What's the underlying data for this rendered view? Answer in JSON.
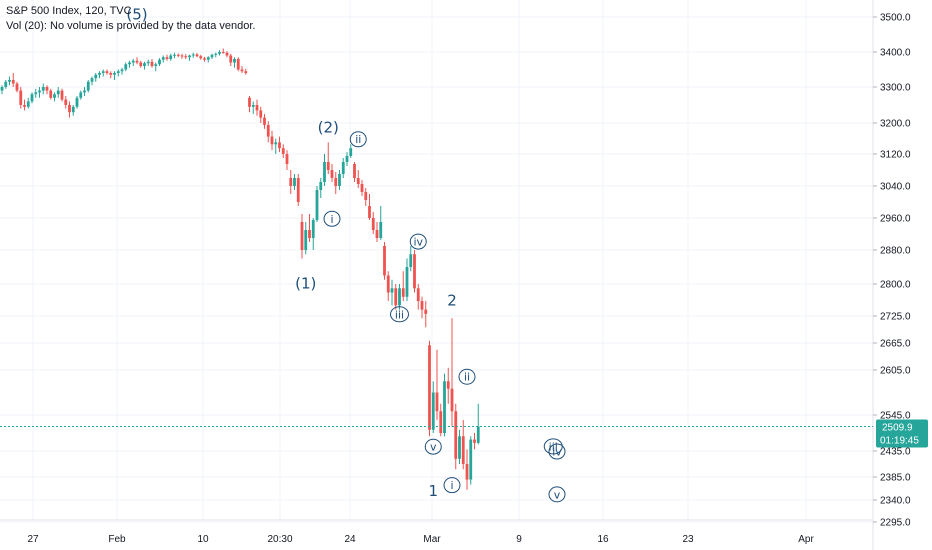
{
  "legend": {
    "symbol_line": "S&P 500 Index, 120, TVC",
    "volume_line": "Vol (20): No volume is provided by the data vendor."
  },
  "price_badge": {
    "price": "2509.9",
    "countdown": "01:19:45",
    "color": "#26a69a"
  },
  "chart_data": {
    "type": "candlestick",
    "title": "S&P 500 Index, 120, TVC",
    "y_ticks": [
      "3500.0",
      "3400.0",
      "3300.0",
      "3200.0",
      "3120.0",
      "3040.0",
      "2960.0",
      "2880.0",
      "2800.0",
      "2725.0",
      "2665.0",
      "2605.0",
      "2545.0",
      "2435.0",
      "2385.0",
      "2340.0",
      "2295.0"
    ],
    "x_ticks": [
      "27",
      "Feb",
      "10",
      "20:30",
      "24",
      "Mar",
      "9",
      "16",
      "23",
      "Apr"
    ],
    "ylim": [
      2295,
      3530
    ],
    "last_price": 2509.9,
    "colors": {
      "up": "#26a69a",
      "down": "#ef5350",
      "wave_label": "#1f4e79",
      "grid": "#f0f3fa"
    },
    "candles": [
      [
        3290,
        3305,
        3280,
        3300
      ],
      [
        3300,
        3320,
        3295,
        3315
      ],
      [
        3315,
        3330,
        3305,
        3320
      ],
      [
        3320,
        3340,
        3300,
        3310
      ],
      [
        3310,
        3315,
        3285,
        3290
      ],
      [
        3290,
        3300,
        3240,
        3250
      ],
      [
        3250,
        3265,
        3235,
        3245
      ],
      [
        3245,
        3270,
        3240,
        3260
      ],
      [
        3260,
        3285,
        3255,
        3280
      ],
      [
        3280,
        3295,
        3270,
        3285
      ],
      [
        3285,
        3300,
        3270,
        3290
      ],
      [
        3290,
        3310,
        3280,
        3300
      ],
      [
        3300,
        3305,
        3280,
        3290
      ],
      [
        3290,
        3295,
        3265,
        3270
      ],
      [
        3270,
        3285,
        3260,
        3280
      ],
      [
        3280,
        3300,
        3270,
        3290
      ],
      [
        3290,
        3295,
        3260,
        3265
      ],
      [
        3265,
        3275,
        3240,
        3250
      ],
      [
        3250,
        3260,
        3215,
        3230
      ],
      [
        3230,
        3250,
        3220,
        3245
      ],
      [
        3245,
        3275,
        3240,
        3270
      ],
      [
        3270,
        3290,
        3265,
        3285
      ],
      [
        3285,
        3300,
        3275,
        3290
      ],
      [
        3290,
        3320,
        3285,
        3315
      ],
      [
        3315,
        3330,
        3305,
        3325
      ],
      [
        3325,
        3340,
        3315,
        3335
      ],
      [
        3335,
        3345,
        3325,
        3340
      ],
      [
        3340,
        3350,
        3330,
        3345
      ],
      [
        3345,
        3350,
        3335,
        3340
      ],
      [
        3340,
        3345,
        3325,
        3335
      ],
      [
        3335,
        3345,
        3320,
        3340
      ],
      [
        3340,
        3350,
        3330,
        3345
      ],
      [
        3345,
        3355,
        3335,
        3350
      ],
      [
        3350,
        3370,
        3345,
        3365
      ],
      [
        3365,
        3375,
        3355,
        3370
      ],
      [
        3370,
        3380,
        3360,
        3375
      ],
      [
        3375,
        3385,
        3365,
        3370
      ],
      [
        3370,
        3375,
        3355,
        3360
      ],
      [
        3360,
        3372,
        3350,
        3368
      ],
      [
        3368,
        3378,
        3360,
        3372
      ],
      [
        3372,
        3380,
        3355,
        3360
      ],
      [
        3360,
        3370,
        3345,
        3365
      ],
      [
        3365,
        3382,
        3360,
        3378
      ],
      [
        3378,
        3390,
        3370,
        3385
      ],
      [
        3385,
        3392,
        3375,
        3380
      ],
      [
        3380,
        3395,
        3375,
        3390
      ],
      [
        3390,
        3398,
        3382,
        3392
      ],
      [
        3392,
        3396,
        3385,
        3390
      ],
      [
        3390,
        3395,
        3380,
        3388
      ],
      [
        3388,
        3394,
        3380,
        3385
      ],
      [
        3385,
        3392,
        3375,
        3390
      ],
      [
        3390,
        3398,
        3383,
        3393
      ],
      [
        3393,
        3397,
        3385,
        3388
      ],
      [
        3388,
        3392,
        3378,
        3382
      ],
      [
        3382,
        3386,
        3372,
        3378
      ],
      [
        3378,
        3388,
        3370,
        3385
      ],
      [
        3385,
        3395,
        3380,
        3392
      ],
      [
        3392,
        3398,
        3385,
        3395
      ],
      [
        3395,
        3405,
        3390,
        3400
      ],
      [
        3400,
        3410,
        3395,
        3398
      ],
      [
        3398,
        3402,
        3385,
        3390
      ],
      [
        3390,
        3395,
        3360,
        3370
      ],
      [
        3370,
        3385,
        3355,
        3380
      ],
      [
        3380,
        3385,
        3345,
        3350
      ],
      [
        3350,
        3360,
        3340,
        3345
      ],
      [
        3345,
        3352,
        3335,
        3340
      ],
      [
        3270,
        3275,
        3230,
        3245
      ],
      [
        3245,
        3260,
        3225,
        3250
      ],
      [
        3250,
        3265,
        3220,
        3235
      ],
      [
        3235,
        3245,
        3200,
        3215
      ],
      [
        3215,
        3225,
        3185,
        3195
      ],
      [
        3195,
        3205,
        3150,
        3165
      ],
      [
        3165,
        3180,
        3130,
        3145
      ],
      [
        3145,
        3160,
        3120,
        3150
      ],
      [
        3150,
        3165,
        3125,
        3135
      ],
      [
        3135,
        3145,
        3110,
        3120
      ],
      [
        3120,
        3130,
        3080,
        3095
      ],
      [
        3060,
        3080,
        3020,
        3040
      ],
      [
        3040,
        3070,
        3030,
        3060
      ],
      [
        3060,
        3070,
        2990,
        3000
      ],
      [
        2950,
        2970,
        2860,
        2880
      ],
      [
        2880,
        2950,
        2870,
        2930
      ],
      [
        2930,
        2970,
        2900,
        2910
      ],
      [
        2910,
        2960,
        2880,
        2955
      ],
      [
        2955,
        3040,
        2950,
        3030
      ],
      [
        3030,
        3060,
        3010,
        3050
      ],
      [
        3050,
        3120,
        3040,
        3100
      ],
      [
        3100,
        3150,
        3070,
        3080
      ],
      [
        3080,
        3095,
        3050,
        3060
      ],
      [
        3060,
        3075,
        3020,
        3040
      ],
      [
        3040,
        3080,
        3030,
        3070
      ],
      [
        3070,
        3110,
        3060,
        3100
      ],
      [
        3100,
        3125,
        3090,
        3115
      ],
      [
        3115,
        3145,
        3110,
        3135
      ],
      [
        3095,
        3100,
        3050,
        3060
      ],
      [
        3060,
        3080,
        3035,
        3045
      ],
      [
        3045,
        3055,
        3015,
        3025
      ],
      [
        3025,
        3035,
        2990,
        3005
      ],
      [
        2990,
        3020,
        2955,
        2960
      ],
      [
        2960,
        2975,
        2920,
        2930
      ],
      [
        2930,
        2950,
        2900,
        2910
      ],
      [
        2910,
        2990,
        2905,
        2950
      ],
      [
        2890,
        2900,
        2810,
        2820
      ],
      [
        2820,
        2830,
        2760,
        2780
      ],
      [
        2780,
        2810,
        2750,
        2790
      ],
      [
        2790,
        2800,
        2740,
        2750
      ],
      [
        2750,
        2800,
        2740,
        2790
      ],
      [
        2790,
        2830,
        2760,
        2770
      ],
      [
        2770,
        2860,
        2760,
        2840
      ],
      [
        2840,
        2890,
        2830,
        2870
      ],
      [
        2870,
        2880,
        2780,
        2790
      ],
      [
        2790,
        2800,
        2740,
        2760
      ],
      [
        2760,
        2770,
        2720,
        2740
      ],
      [
        2740,
        2760,
        2700,
        2730
      ],
      [
        2660,
        2670,
        2480,
        2500
      ],
      [
        2500,
        2590,
        2490,
        2575
      ],
      [
        2575,
        2650,
        2530,
        2550
      ],
      [
        2550,
        2560,
        2480,
        2490
      ],
      [
        2490,
        2600,
        2480,
        2590
      ],
      [
        2590,
        2610,
        2560,
        2580
      ],
      [
        2580,
        2720,
        2510,
        2550
      ],
      [
        2550,
        2560,
        2400,
        2420
      ],
      [
        2420,
        2500,
        2410,
        2480
      ],
      [
        2480,
        2530,
        2400,
        2410
      ],
      [
        2410,
        2440,
        2360,
        2380
      ],
      [
        2380,
        2480,
        2370,
        2470
      ],
      [
        2470,
        2490,
        2440,
        2460
      ],
      [
        2460,
        2560,
        2455,
        2510
      ]
    ],
    "wave_labels": [
      {
        "text": "(5)",
        "date_index": 36,
        "price": 3509,
        "circle": false,
        "size": 15
      },
      {
        "text": "(2)",
        "date_index": 87,
        "price": 3189,
        "circle": false,
        "size": 15
      },
      {
        "text": "(1)",
        "date_index": 81,
        "price": 2802,
        "circle": false,
        "size": 15
      },
      {
        "text": "ii",
        "date_index": 95,
        "price": 3158,
        "circle": true,
        "size": 11
      },
      {
        "text": "i",
        "date_index": 88,
        "price": 2958,
        "circle": true,
        "size": 11
      },
      {
        "text": "iv",
        "date_index": 111,
        "price": 2901,
        "circle": true,
        "size": 11
      },
      {
        "text": "iii",
        "date_index": 106,
        "price": 2729,
        "circle": true,
        "size": 11
      },
      {
        "text": "2",
        "date_index": 120,
        "price": 2762,
        "circle": false,
        "size": 15
      },
      {
        "text": "ii",
        "date_index": 124,
        "price": 2596,
        "circle": true,
        "size": 11
      },
      {
        "text": "v",
        "date_index": 115,
        "price": 2448,
        "circle": true,
        "size": 11
      },
      {
        "text": "1",
        "date_index": 115,
        "price": 2358,
        "circle": false,
        "size": 15
      },
      {
        "text": "i",
        "date_index": 120,
        "price": 2369,
        "circle": true,
        "size": 11
      },
      {
        "text": "iii",
        "date_index": 147,
        "price": 2449,
        "circle": true,
        "size": 11
      },
      {
        "text": "iv",
        "date_index": 148,
        "price": 2434,
        "circle": true,
        "size": 11
      },
      {
        "text": "v",
        "date_index": 148,
        "price": 2351,
        "circle": true,
        "size": 11
      }
    ]
  }
}
